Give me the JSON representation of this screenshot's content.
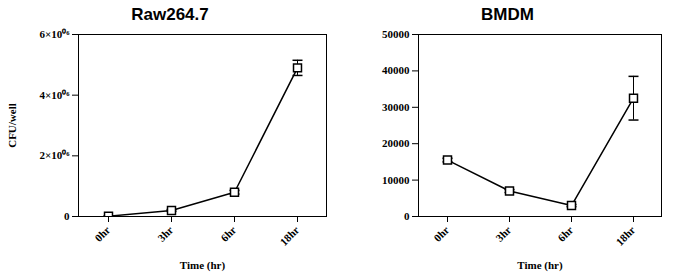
{
  "chart_data": [
    {
      "type": "line",
      "title": "Raw264.7",
      "x_label": "Time (hr)",
      "y_label": "CFU/well",
      "categories": [
        "0hr",
        "3hr",
        "6hr",
        "18hr"
      ],
      "values": [
        10000,
        200000,
        800000,
        4900000
      ],
      "errors": [
        5000,
        30000,
        60000,
        250000
      ],
      "color": "#000000",
      "marker": "square",
      "ylim": [
        0,
        6000000
      ],
      "yticks": [
        0,
        {
          "value": 2000000,
          "label": "2×10⁰⁶"
        },
        {
          "value": 4000000,
          "label": "4×10⁰⁶"
        },
        {
          "value": 6000000,
          "label": "6×10⁰⁶"
        }
      ]
    },
    {
      "type": "line",
      "title": "BMDM",
      "x_label": "Time (hr)",
      "categories": [
        "0hr",
        "3hr",
        "6hr",
        "18hr"
      ],
      "values": [
        15500,
        7000,
        3000,
        32500
      ],
      "errors": [
        500,
        400,
        300,
        6000
      ],
      "color": "#000000",
      "marker": "square",
      "ylim": [
        0,
        50000
      ],
      "yticks": [
        0,
        10000,
        20000,
        30000,
        40000,
        50000
      ]
    }
  ]
}
